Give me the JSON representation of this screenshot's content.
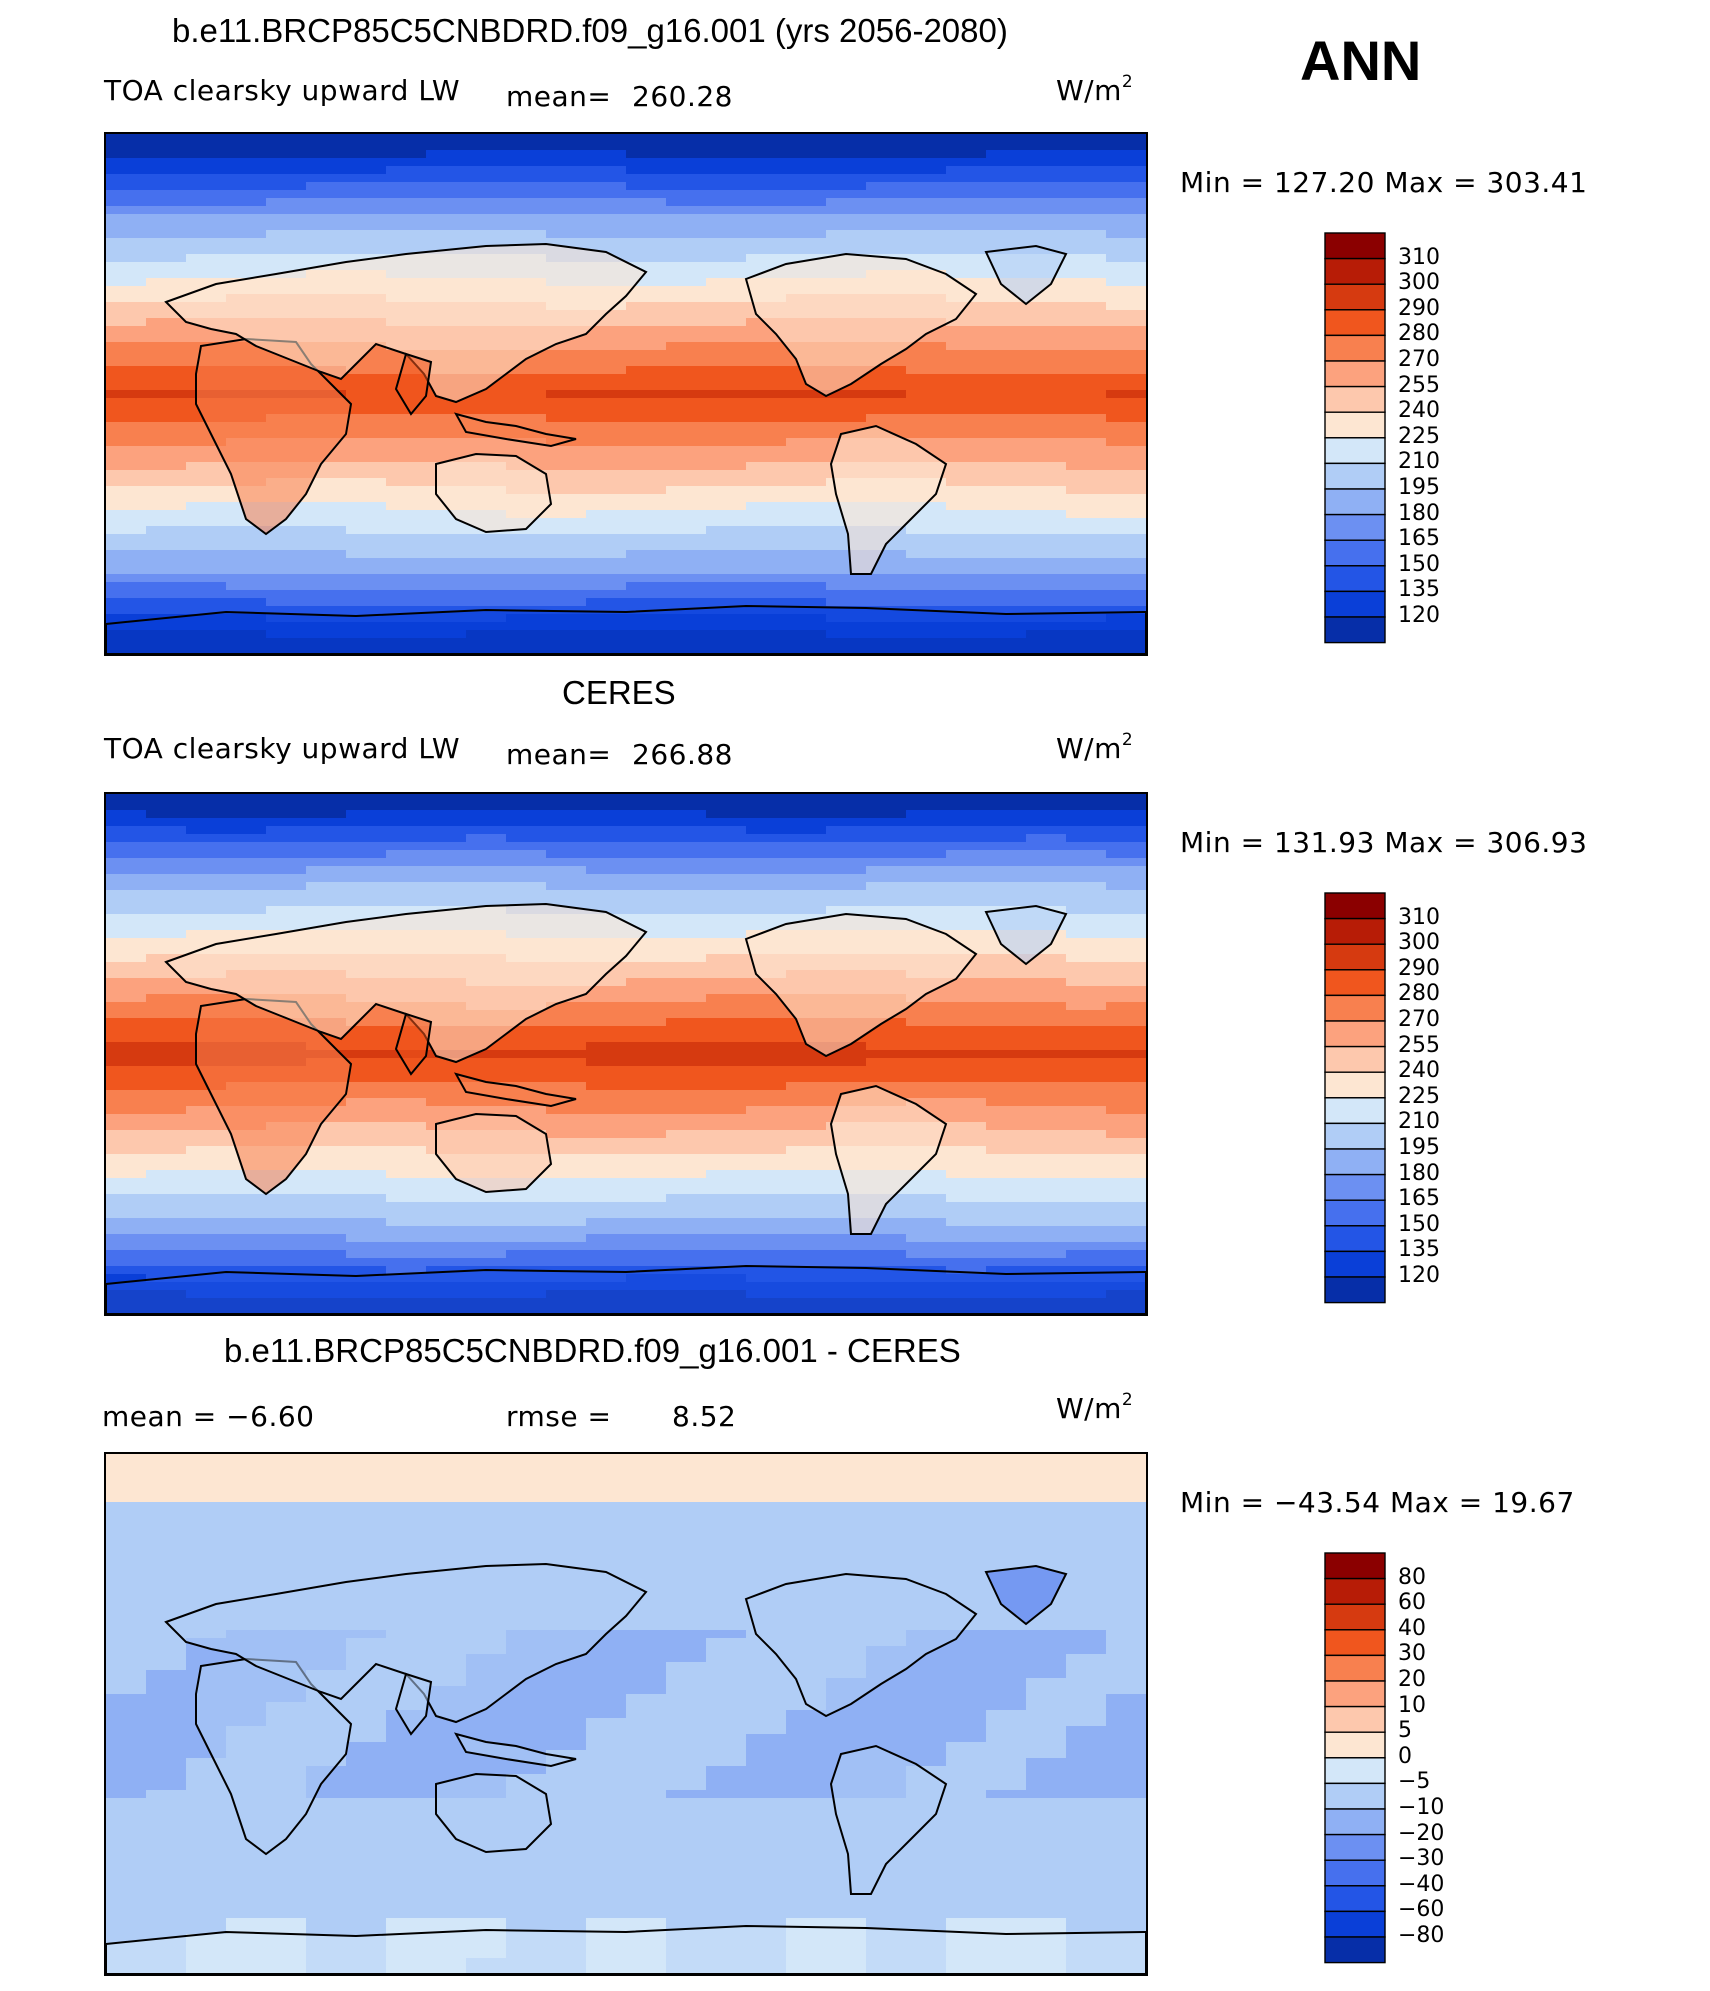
{
  "header": {
    "season": "ANN"
  },
  "panels": [
    {
      "title": "b.e11.BRCP85C5CNBDRD.f09_g16.001 (yrs 2056-2080)",
      "left_label": "TOA clearsky upward LW",
      "stat_label": "mean=",
      "stat_value": "260.28",
      "units_base": "W/m",
      "units_exp": "2",
      "minmax": "Min  =  127.20  Max  =  303.41",
      "field": "model"
    },
    {
      "title": "CERES",
      "left_label": "TOA clearsky upward LW",
      "stat_label": "mean=",
      "stat_value": "266.88",
      "units_base": "W/m",
      "units_exp": "2",
      "minmax": "Min  =  131.93  Max  =  306.93",
      "field": "obs"
    },
    {
      "title": "b.e11.BRCP85C5CNBDRD.f09_g16.001 - CERES",
      "left_label": "mean =    −6.60",
      "stat_label": "rmse =",
      "stat_value": "8.52",
      "units_base": "W/m",
      "units_exp": "2",
      "minmax": "Min  =  −43.54  Max  =    19.67",
      "field": "diff"
    }
  ],
  "colorbars": {
    "absolute": {
      "labels": [
        "310",
        "300",
        "290",
        "280",
        "270",
        "255",
        "240",
        "225",
        "210",
        "195",
        "180",
        "165",
        "150",
        "135",
        "120"
      ],
      "colors": [
        "#8b0000",
        "#b71c06",
        "#d63a10",
        "#f0561e",
        "#f8804f",
        "#fca27e",
        "#fdc8ad",
        "#fde6d2",
        "#d3e7f9",
        "#b0cdf6",
        "#8fb0f4",
        "#6c90f2",
        "#4670ee",
        "#2355e6",
        "#0a3fd8",
        "#062ea8"
      ]
    },
    "difference": {
      "labels": [
        "80",
        "60",
        "40",
        "30",
        "20",
        "10",
        "5",
        "0",
        "−5",
        "−10",
        "−20",
        "−30",
        "−40",
        "−60",
        "−80"
      ],
      "colors": [
        "#8b0000",
        "#b71c06",
        "#d63a10",
        "#f0561e",
        "#f8804f",
        "#fca27e",
        "#fdc8ad",
        "#fde6d2",
        "#d3e7f9",
        "#b0cdf6",
        "#8fb0f4",
        "#6c90f2",
        "#4670ee",
        "#2355e6",
        "#0a3fd8",
        "#062ea8"
      ]
    }
  }
}
